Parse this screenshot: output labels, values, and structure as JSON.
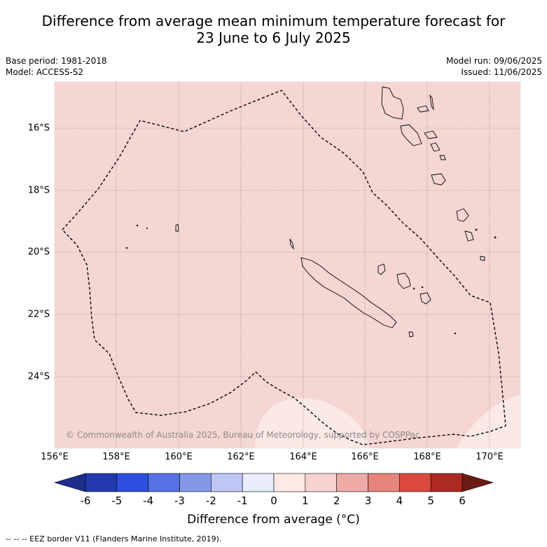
{
  "title_line1": "Difference from average mean minimum temperature forecast for",
  "title_line2": "23 June to 6 July 2025",
  "base_period": "Base period: 1981-2018",
  "model": "Model: ACCESS-S2",
  "model_run": "Model run: 09/06/2025",
  "issued": "Issued: 11/06/2025",
  "lat_labels": [
    "16°S",
    "18°S",
    "20°S",
    "22°S",
    "24°S"
  ],
  "lon_labels": [
    "156°E",
    "158°E",
    "160°E",
    "162°E",
    "164°E",
    "166°E",
    "168°E",
    "170°E"
  ],
  "copyright": "© Commonwealth of Australia 2025, Bureau of Meteorology, supported by COSPPac",
  "colorbar": {
    "ticks": [
      "-6",
      "-5",
      "-4",
      "-3",
      "-2",
      "-1",
      "0",
      "1",
      "2",
      "3",
      "4",
      "5",
      "6"
    ],
    "colors": [
      "#1c2d8c",
      "#2239ad",
      "#2e4fe0",
      "#5571e3",
      "#8598e8",
      "#bec6f3",
      "#e8ecfb",
      "#fde9e6",
      "#f6d3d0",
      "#eeaba6",
      "#e7847c",
      "#dc4a3e",
      "#ad2a22",
      "#6b1b16"
    ],
    "label": "Difference from average (°C)"
  },
  "map_colors": {
    "main_fill": "#f5d6d3",
    "light_fill": "#fbe9e6"
  },
  "footer": "--  --  -- EEZ border V11 (Flanders Marine Institute, 2019)."
}
